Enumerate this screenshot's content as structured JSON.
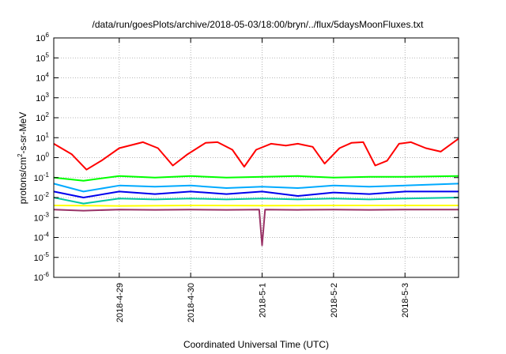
{
  "chart_data": {
    "type": "line",
    "title": "/data/run/goesPlots/archive/2018-05-03/18:00/bryn/../flux/5daysMoonFluxes.txt",
    "xlabel": "Coordinated Universal Time (UTC)",
    "ylabel": {
      "prefix": "protons/cm",
      "superscript": "2",
      "suffix": "-s-sr-MeV"
    },
    "x_scale": "time",
    "x_range": [
      "2018-04-28T02:00",
      "2018-05-03T18:00"
    ],
    "x_ticks": [
      {
        "label": "2018-4-29",
        "value": "2018-04-29T00:00"
      },
      {
        "label": "2018-4-30",
        "value": "2018-04-30T00:00"
      },
      {
        "label": "2018-5-1",
        "value": "2018-05-01T00:00"
      },
      {
        "label": "2018-5-2",
        "value": "2018-05-02T00:00"
      },
      {
        "label": "2018-5-3",
        "value": "2018-05-03T00:00"
      }
    ],
    "y_scale": "log",
    "ylim": [
      1e-06,
      1000000.0
    ],
    "y_ticks": [
      {
        "base": "10",
        "exp": "6",
        "value": 1000000.0
      },
      {
        "base": "10",
        "exp": "5",
        "value": 100000.0
      },
      {
        "base": "10",
        "exp": "4",
        "value": 10000.0
      },
      {
        "base": "10",
        "exp": "3",
        "value": 1000.0
      },
      {
        "base": "10",
        "exp": "2",
        "value": 100.0
      },
      {
        "base": "10",
        "exp": "1",
        "value": 10.0
      },
      {
        "base": "10",
        "exp": "0",
        "value": 1.0
      },
      {
        "base": "10",
        "exp": "-1",
        "value": 0.1
      },
      {
        "base": "10",
        "exp": "-2",
        "value": 0.01
      },
      {
        "base": "10",
        "exp": "-3",
        "value": 0.001
      },
      {
        "base": "10",
        "exp": "-4",
        "value": 0.0001
      },
      {
        "base": "10",
        "exp": "-5",
        "value": 1e-05
      },
      {
        "base": "10",
        "exp": "-6",
        "value": 1e-06
      }
    ],
    "grid": true,
    "series": [
      {
        "color": "#ff0000",
        "x": [
          "2018-04-28T02:00",
          "2018-04-28T08:00",
          "2018-04-28T13:00",
          "2018-04-28T18:00",
          "2018-04-29T00:00",
          "2018-04-29T08:00",
          "2018-04-29T13:00",
          "2018-04-29T18:00",
          "2018-04-29T23:00",
          "2018-04-30T05:00",
          "2018-04-30T09:00",
          "2018-04-30T14:00",
          "2018-04-30T18:00",
          "2018-04-30T22:00",
          "2018-05-01T03:00",
          "2018-05-01T08:00",
          "2018-05-01T12:00",
          "2018-05-01T17:00",
          "2018-05-01T21:00",
          "2018-05-02T02:00",
          "2018-05-02T06:00",
          "2018-05-02T10:00",
          "2018-05-02T14:00",
          "2018-05-02T18:00",
          "2018-05-02T22:00",
          "2018-05-03T02:00",
          "2018-05-03T07:00",
          "2018-05-03T12:00",
          "2018-05-03T18:00"
        ],
        "y": [
          5,
          1.5,
          0.25,
          0.7,
          3,
          6,
          3,
          0.4,
          1.5,
          5.5,
          6,
          2.5,
          0.35,
          2.5,
          5,
          4,
          5,
          3.5,
          0.5,
          3,
          5.5,
          6,
          0.4,
          0.7,
          5,
          6,
          3,
          2,
          9
        ]
      },
      {
        "color": "#00ff00",
        "x": [
          "2018-04-28T02:00",
          "2018-04-28T12:00",
          "2018-04-29T00:00",
          "2018-04-29T12:00",
          "2018-04-30T00:00",
          "2018-04-30T12:00",
          "2018-05-01T00:00",
          "2018-05-01T12:00",
          "2018-05-02T00:00",
          "2018-05-02T12:00",
          "2018-05-03T00:00",
          "2018-05-03T18:00"
        ],
        "y": [
          0.1,
          0.07,
          0.12,
          0.1,
          0.12,
          0.1,
          0.11,
          0.12,
          0.1,
          0.11,
          0.11,
          0.12
        ]
      },
      {
        "color": "#00aaff",
        "x": [
          "2018-04-28T02:00",
          "2018-04-28T12:00",
          "2018-04-29T00:00",
          "2018-04-29T12:00",
          "2018-04-30T00:00",
          "2018-04-30T12:00",
          "2018-05-01T00:00",
          "2018-05-01T12:00",
          "2018-05-02T00:00",
          "2018-05-02T12:00",
          "2018-05-03T00:00",
          "2018-05-03T18:00"
        ],
        "y": [
          0.05,
          0.02,
          0.04,
          0.035,
          0.04,
          0.03,
          0.035,
          0.03,
          0.04,
          0.035,
          0.04,
          0.05
        ]
      },
      {
        "color": "#0000ee",
        "x": [
          "2018-04-28T02:00",
          "2018-04-28T12:00",
          "2018-04-29T00:00",
          "2018-04-29T12:00",
          "2018-04-30T00:00",
          "2018-04-30T12:00",
          "2018-05-01T00:00",
          "2018-05-01T12:00",
          "2018-05-02T00:00",
          "2018-05-02T12:00",
          "2018-05-03T00:00",
          "2018-05-03T18:00"
        ],
        "y": [
          0.02,
          0.01,
          0.02,
          0.015,
          0.02,
          0.015,
          0.02,
          0.012,
          0.018,
          0.015,
          0.02,
          0.02
        ]
      },
      {
        "color": "#00c8a0",
        "x": [
          "2018-04-28T02:00",
          "2018-04-28T12:00",
          "2018-04-29T00:00",
          "2018-04-29T12:00",
          "2018-04-30T00:00",
          "2018-04-30T12:00",
          "2018-05-01T00:00",
          "2018-05-01T12:00",
          "2018-05-02T00:00",
          "2018-05-02T12:00",
          "2018-05-03T00:00",
          "2018-05-03T18:00"
        ],
        "y": [
          0.01,
          0.005,
          0.009,
          0.008,
          0.009,
          0.008,
          0.009,
          0.008,
          0.009,
          0.008,
          0.009,
          0.01
        ]
      },
      {
        "color": "#ffff00",
        "x": [
          "2018-04-28T02:00",
          "2018-04-29T00:00",
          "2018-04-30T00:00",
          "2018-05-01T00:00",
          "2018-05-02T00:00",
          "2018-05-03T00:00",
          "2018-05-03T18:00"
        ],
        "y": [
          0.004,
          0.0038,
          0.004,
          0.0039,
          0.004,
          0.004,
          0.004
        ]
      },
      {
        "color": "#993366",
        "x": [
          "2018-04-28T02:00",
          "2018-04-28T12:00",
          "2018-04-29T00:00",
          "2018-04-29T12:00",
          "2018-04-30T00:00",
          "2018-04-30T12:00",
          "2018-04-30T23:00",
          "2018-05-01T00:00",
          "2018-05-01T01:00",
          "2018-05-01T12:00",
          "2018-05-02T00:00",
          "2018-05-02T12:00",
          "2018-05-03T00:00",
          "2018-05-03T18:00"
        ],
        "y": [
          0.0025,
          0.0022,
          0.0025,
          0.0024,
          0.0025,
          0.0024,
          0.0025,
          4e-05,
          0.0025,
          0.0024,
          0.0025,
          0.0024,
          0.0025,
          0.0025
        ]
      }
    ]
  }
}
